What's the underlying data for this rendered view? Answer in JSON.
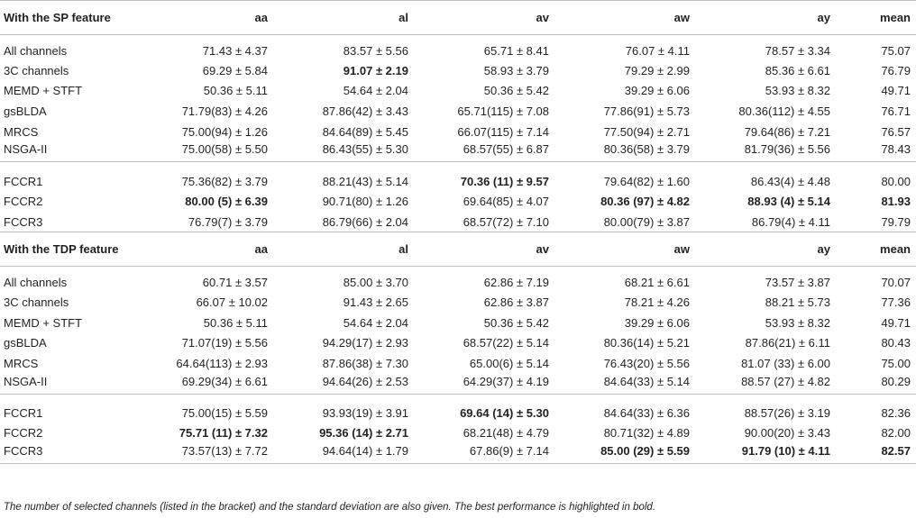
{
  "sections": [
    {
      "header": [
        "With the SP feature",
        "aa",
        "al",
        "av",
        "aw",
        "ay",
        "mean"
      ],
      "groups": [
        [
          {
            "name": "All channels",
            "cells": [
              "71.43 ± 4.37",
              "83.57 ± 5.56",
              "65.71 ± 8.41",
              "76.07 ± 4.11",
              "78.57 ± 3.34",
              "75.07"
            ],
            "bold": [
              false,
              false,
              false,
              false,
              false,
              false
            ]
          },
          {
            "name": "3C channels",
            "cells": [
              "69.29 ± 5.84",
              "91.07 ± 2.19",
              "58.93 ± 3.79",
              "79.29 ± 2.99",
              "85.36 ± 6.61",
              "76.79"
            ],
            "bold": [
              false,
              true,
              false,
              false,
              false,
              false
            ]
          },
          {
            "name": "MEMD + STFT",
            "cells": [
              "50.36 ± 5.11",
              "54.64 ± 2.04",
              "50.36 ± 5.42",
              "39.29 ± 6.06",
              "53.93 ± 8.32",
              "49.71"
            ],
            "bold": [
              false,
              false,
              false,
              false,
              false,
              false
            ]
          },
          {
            "name": "gsBLDA",
            "cells": [
              "71.79(83) ± 4.26",
              "87.86(42) ± 3.43",
              "65.71(115) ± 7.08",
              "77.86(91) ± 5.73",
              "80.36(112) ± 4.55",
              "76.71"
            ],
            "bold": [
              false,
              false,
              false,
              false,
              false,
              false
            ]
          },
          {
            "name": "MRCS",
            "cells": [
              "75.00(94) ± 1.26",
              "84.64(89) ± 5.45",
              "66.07(115) ± 7.14",
              "77.50(94) ± 2.71",
              "79.64(86) ± 7.21",
              "76.57"
            ],
            "bold": [
              false,
              false,
              false,
              false,
              false,
              false
            ]
          },
          {
            "name": "NSGA-II",
            "cells": [
              "75.00(58) ± 5.50",
              "86.43(55) ± 5.30",
              "68.57(55) ± 6.87",
              "80.36(58) ± 3.79",
              "81.79(36) ± 5.56",
              "78.43"
            ],
            "bold": [
              false,
              false,
              false,
              false,
              false,
              false
            ]
          }
        ],
        [
          {
            "name": "FCCR1",
            "cells": [
              "75.36(82) ± 3.79",
              "88.21(43) ± 5.14",
              "70.36 (11) ± 9.57",
              "79.64(82) ± 1.60",
              "86.43(4) ± 4.48",
              "80.00"
            ],
            "bold": [
              false,
              false,
              true,
              false,
              false,
              false
            ]
          },
          {
            "name": "FCCR2",
            "cells": [
              "80.00 (5) ± 6.39",
              "90.71(80) ± 1.26",
              "69.64(85) ± 4.07",
              "80.36 (97) ± 4.82",
              "88.93 (4) ± 5.14",
              "81.93"
            ],
            "bold": [
              true,
              false,
              false,
              true,
              true,
              true
            ]
          },
          {
            "name": "FCCR3",
            "cells": [
              "76.79(7) ± 3.79",
              "86.79(66) ± 2.04",
              "68.57(72) ± 7.10",
              "80.00(79) ± 3.87",
              "86.79(4) ± 4.11",
              "79.79"
            ],
            "bold": [
              false,
              false,
              false,
              false,
              false,
              false
            ]
          }
        ]
      ]
    },
    {
      "header": [
        "With the TDP feature",
        "aa",
        "al",
        "av",
        "aw",
        "ay",
        "mean"
      ],
      "groups": [
        [
          {
            "name": "All channels",
            "cells": [
              "60.71 ± 3.57",
              "85.00 ± 3.70",
              "62.86 ± 7.19",
              "68.21 ± 6.61",
              "73.57 ± 3.87",
              "70.07"
            ],
            "bold": [
              false,
              false,
              false,
              false,
              false,
              false
            ]
          },
          {
            "name": "3C channels",
            "cells": [
              "66.07 ± 10.02",
              "91.43 ± 2.65",
              "62.86 ± 3.87",
              "78.21 ± 4.26",
              "88.21 ± 5.73",
              "77.36"
            ],
            "bold": [
              false,
              false,
              false,
              false,
              false,
              false
            ]
          },
          {
            "name": "MEMD + STFT",
            "cells": [
              "50.36 ± 5.11",
              "54.64 ± 2.04",
              "50.36 ± 5.42",
              "39.29 ± 6.06",
              "53.93 ± 8.32",
              "49.71"
            ],
            "bold": [
              false,
              false,
              false,
              false,
              false,
              false
            ]
          },
          {
            "name": "gsBLDA",
            "cells": [
              "71.07(19) ± 5.56",
              "94.29(17) ± 2.93",
              "68.57(22) ± 5.14",
              "80.36(14) ± 5.21",
              "87.86(21) ± 6.11",
              "80.43"
            ],
            "bold": [
              false,
              false,
              false,
              false,
              false,
              false
            ]
          },
          {
            "name": "MRCS",
            "cells": [
              "64.64(113) ± 2.93",
              "87.86(38) ± 7.30",
              "65.00(6) ± 5.14",
              "76.43(20) ± 5.56",
              "81.07 (33) ± 6.00",
              "75.00"
            ],
            "bold": [
              false,
              false,
              false,
              false,
              false,
              false
            ]
          },
          {
            "name": "NSGA-II",
            "cells": [
              "69.29(34) ± 6.61",
              "94.64(26) ± 2.53",
              "64.29(37) ± 4.19",
              "84.64(33) ± 5.14",
              "88.57 (27) ± 4.82",
              "80.29"
            ],
            "bold": [
              false,
              false,
              false,
              false,
              false,
              false
            ]
          }
        ],
        [
          {
            "name": "FCCR1",
            "cells": [
              "75.00(15) ± 5.59",
              "93.93(19) ± 3.91",
              "69.64 (14) ± 5.30",
              "84.64(33) ± 6.36",
              "88.57(26) ± 3.19",
              "82.36"
            ],
            "bold": [
              false,
              false,
              true,
              false,
              false,
              false
            ]
          },
          {
            "name": "FCCR2",
            "cells": [
              "75.71 (11) ± 7.32",
              "95.36 (14) ± 2.71",
              "68.21(48) ± 4.79",
              "80.71(32) ± 4.89",
              "90.00(20) ± 3.43",
              "82.00"
            ],
            "bold": [
              true,
              true,
              false,
              false,
              false,
              false
            ]
          },
          {
            "name": "FCCR3",
            "cells": [
              "73.57(13) ± 7.72",
              "94.64(14) ± 1.79",
              "67.86(9) ± 7.14",
              "85.00 (29) ± 5.59",
              "91.79 (10) ± 4.11",
              "82.57"
            ],
            "bold": [
              false,
              false,
              false,
              true,
              true,
              true
            ]
          }
        ]
      ]
    }
  ],
  "footnote": "The number of selected channels (listed in the bracket) and the standard deviation are also given. The best performance is highlighted in bold."
}
